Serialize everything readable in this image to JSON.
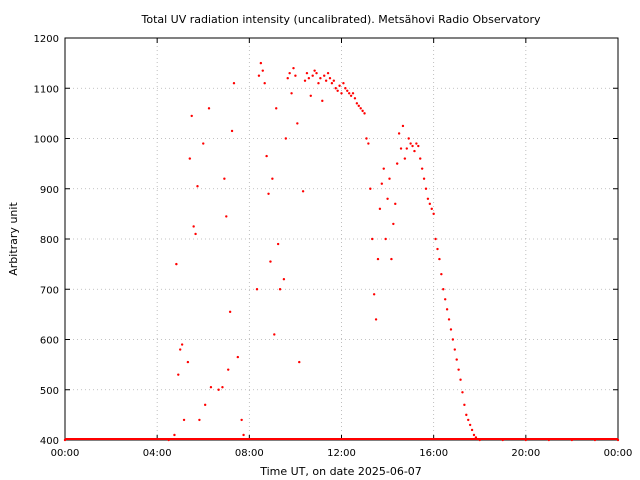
{
  "chart_data": {
    "type": "scatter",
    "title": "Total UV radiation intensity (uncalibrated). Metsähovi Radio Observatory",
    "xlabel": "Time UT, on date 2025-06-07",
    "ylabel": "Arbitrary unit",
    "xlim": [
      "00:00",
      "24:00"
    ],
    "ylim": [
      400,
      1200
    ],
    "x_tick_labels": [
      "00:00",
      "04:00",
      "08:00",
      "12:00",
      "16:00",
      "20:00",
      "00:00"
    ],
    "y_tick_labels": [
      "400",
      "500",
      "600",
      "700",
      "800",
      "900",
      "1000",
      "1100",
      "1200"
    ],
    "grid": true,
    "marker_color": "#ff0000",
    "series": [
      {
        "values": [
          [
            "00:00",
            400
          ],
          [
            "04:30",
            400
          ],
          [
            "04:45",
            410
          ],
          [
            "04:50",
            750
          ],
          [
            "04:55",
            530
          ],
          [
            "05:00",
            580
          ],
          [
            "05:05",
            590
          ],
          [
            "05:10",
            440
          ],
          [
            "05:20",
            555
          ],
          [
            "05:25",
            960
          ],
          [
            "05:30",
            1045
          ],
          [
            "05:35",
            825
          ],
          [
            "05:40",
            810
          ],
          [
            "05:45",
            905
          ],
          [
            "05:50",
            440
          ],
          [
            "06:00",
            990
          ],
          [
            "06:05",
            470
          ],
          [
            "06:15",
            1060
          ],
          [
            "06:20",
            505
          ],
          [
            "06:40",
            500
          ],
          [
            "06:50",
            505
          ],
          [
            "06:55",
            920
          ],
          [
            "07:00",
            845
          ],
          [
            "07:05",
            540
          ],
          [
            "07:10",
            655
          ],
          [
            "07:15",
            1015
          ],
          [
            "07:20",
            1110
          ],
          [
            "07:30",
            565
          ],
          [
            "07:40",
            440
          ],
          [
            "07:45",
            410
          ],
          [
            "08:20",
            700
          ],
          [
            "08:25",
            1125
          ],
          [
            "08:30",
            1150
          ],
          [
            "08:35",
            1135
          ],
          [
            "08:40",
            1110
          ],
          [
            "08:45",
            965
          ],
          [
            "08:50",
            890
          ],
          [
            "08:55",
            755
          ],
          [
            "09:00",
            920
          ],
          [
            "09:05",
            610
          ],
          [
            "09:10",
            1060
          ],
          [
            "09:15",
            790
          ],
          [
            "09:20",
            700
          ],
          [
            "09:30",
            720
          ],
          [
            "09:35",
            1000
          ],
          [
            "09:40",
            1120
          ],
          [
            "09:45",
            1130
          ],
          [
            "09:50",
            1090
          ],
          [
            "09:55",
            1140
          ],
          [
            "10:00",
            1125
          ],
          [
            "10:05",
            1030
          ],
          [
            "10:10",
            555
          ],
          [
            "10:20",
            895
          ],
          [
            "10:25",
            1115
          ],
          [
            "10:30",
            1130
          ],
          [
            "10:35",
            1120
          ],
          [
            "10:40",
            1085
          ],
          [
            "10:45",
            1125
          ],
          [
            "10:50",
            1135
          ],
          [
            "10:55",
            1130
          ],
          [
            "11:00",
            1110
          ],
          [
            "11:05",
            1120
          ],
          [
            "11:10",
            1075
          ],
          [
            "11:15",
            1125
          ],
          [
            "11:20",
            1115
          ],
          [
            "11:25",
            1130
          ],
          [
            "11:30",
            1120
          ],
          [
            "11:35",
            1110
          ],
          [
            "11:40",
            1115
          ],
          [
            "11:45",
            1100
          ],
          [
            "11:50",
            1095
          ],
          [
            "11:55",
            1105
          ],
          [
            "12:00",
            1090
          ],
          [
            "12:05",
            1110
          ],
          [
            "12:10",
            1100
          ],
          [
            "12:15",
            1095
          ],
          [
            "12:20",
            1090
          ],
          [
            "12:25",
            1085
          ],
          [
            "12:30",
            1090
          ],
          [
            "12:35",
            1080
          ],
          [
            "12:40",
            1070
          ],
          [
            "12:45",
            1065
          ],
          [
            "12:50",
            1060
          ],
          [
            "12:55",
            1055
          ],
          [
            "13:00",
            1050
          ],
          [
            "13:05",
            1000
          ],
          [
            "13:10",
            990
          ],
          [
            "13:15",
            900
          ],
          [
            "13:20",
            800
          ],
          [
            "13:25",
            690
          ],
          [
            "13:30",
            640
          ],
          [
            "13:35",
            760
          ],
          [
            "13:40",
            860
          ],
          [
            "13:45",
            910
          ],
          [
            "13:50",
            940
          ],
          [
            "13:55",
            800
          ],
          [
            "14:00",
            880
          ],
          [
            "14:05",
            920
          ],
          [
            "14:10",
            760
          ],
          [
            "14:15",
            830
          ],
          [
            "14:20",
            870
          ],
          [
            "14:25",
            950
          ],
          [
            "14:30",
            1010
          ],
          [
            "14:35",
            980
          ],
          [
            "14:40",
            1025
          ],
          [
            "14:45",
            960
          ],
          [
            "14:50",
            980
          ],
          [
            "14:55",
            1000
          ],
          [
            "15:00",
            990
          ],
          [
            "15:05",
            985
          ],
          [
            "15:10",
            975
          ],
          [
            "15:15",
            990
          ],
          [
            "15:20",
            985
          ],
          [
            "15:25",
            960
          ],
          [
            "15:30",
            940
          ],
          [
            "15:35",
            920
          ],
          [
            "15:40",
            900
          ],
          [
            "15:45",
            880
          ],
          [
            "15:50",
            870
          ],
          [
            "15:55",
            860
          ],
          [
            "16:00",
            850
          ],
          [
            "16:05",
            800
          ],
          [
            "16:10",
            780
          ],
          [
            "16:15",
            760
          ],
          [
            "16:20",
            730
          ],
          [
            "16:25",
            700
          ],
          [
            "16:30",
            680
          ],
          [
            "16:35",
            660
          ],
          [
            "16:40",
            640
          ],
          [
            "16:45",
            620
          ],
          [
            "16:50",
            600
          ],
          [
            "16:55",
            580
          ],
          [
            "17:00",
            560
          ],
          [
            "17:05",
            540
          ],
          [
            "17:10",
            520
          ],
          [
            "17:15",
            495
          ],
          [
            "17:20",
            470
          ],
          [
            "17:25",
            450
          ],
          [
            "17:30",
            440
          ],
          [
            "17:35",
            430
          ],
          [
            "17:40",
            420
          ],
          [
            "17:45",
            410
          ],
          [
            "17:50",
            405
          ],
          [
            "18:00",
            400
          ],
          [
            "19:00",
            400
          ],
          [
            "20:00",
            400
          ],
          [
            "21:00",
            400
          ],
          [
            "22:00",
            400
          ],
          [
            "23:00",
            400
          ],
          [
            "24:00",
            400
          ]
        ]
      }
    ]
  }
}
